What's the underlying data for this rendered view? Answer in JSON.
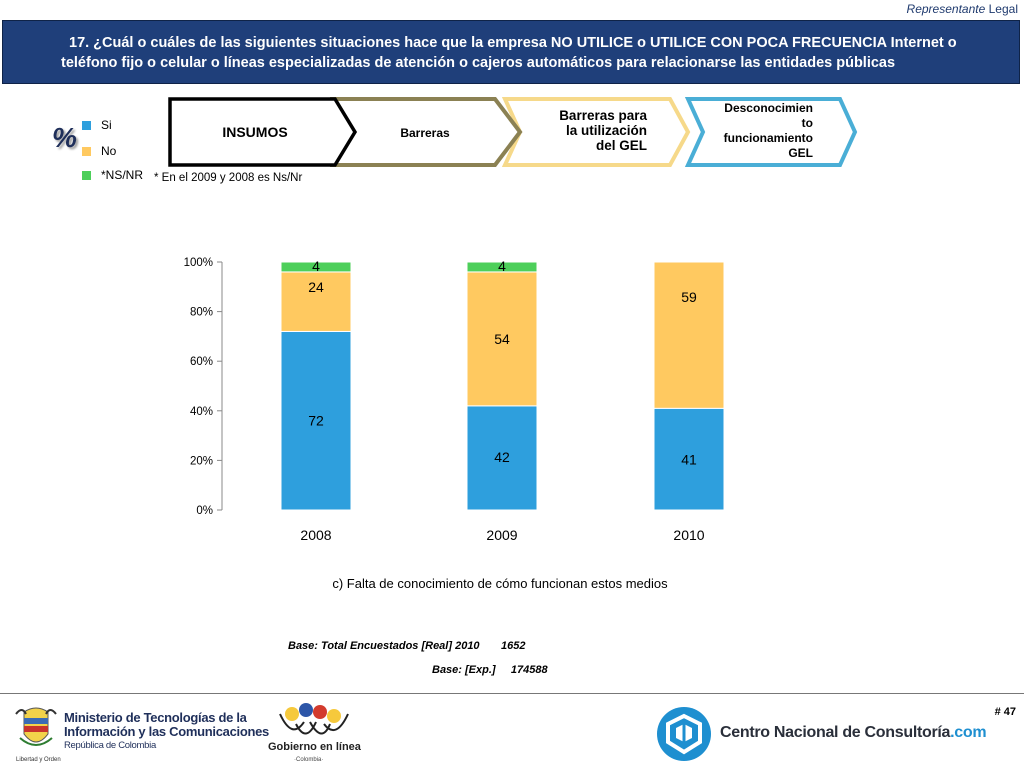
{
  "top_right": {
    "italic": "Representante",
    "plain": "Legal"
  },
  "header": {
    "question": "17. ¿Cuál o cuáles de las siguientes situaciones hace que la empresa NO UTILICE o UTILICE CON POCA FRECUENCIA Internet o teléfono fijo o celular o líneas especializadas de atención o cajeros automáticos para relacionarse las entidades públicas",
    "bg_color": "#1f3f7a"
  },
  "percent_symbol": "%",
  "legend": [
    {
      "label": "Si",
      "color": "#2e9fdd"
    },
    {
      "label": "No",
      "color": "#ffc960"
    },
    {
      "label": "*NS/NR",
      "color": "#4dcf5a"
    }
  ],
  "footnote": "* En el 2009 y 2008 es Ns/Nr",
  "chevrons": [
    {
      "label": "INSUMOS",
      "border_color": "#000000"
    },
    {
      "label": "Barreras",
      "border_color": "#8b8153"
    },
    {
      "label": "Barreras para la utilización del GEL",
      "border_color": "#f6d98a"
    },
    {
      "label": "Desconocimiento funcionamiento GEL",
      "border_color": "#4aaed6"
    }
  ],
  "chevron_label_lines": {
    "c2": [
      "Barreras para",
      "la utilización",
      "del GEL"
    ],
    "c3": [
      "Desconocimien",
      "to",
      "funcionamiento",
      "GEL"
    ]
  },
  "chart_data": {
    "type": "bar",
    "stacked": true,
    "categories": [
      "2008",
      "2009",
      "2010"
    ],
    "series": [
      {
        "name": "Si",
        "values": [
          72,
          42,
          41
        ],
        "color": "#2e9fdd"
      },
      {
        "name": "No",
        "values": [
          24,
          54,
          59
        ],
        "color": "#ffc960"
      },
      {
        "name": "*NS/NR",
        "values": [
          4,
          4,
          0
        ],
        "color": "#4dcf5a"
      }
    ],
    "data_labels": [
      [
        "72",
        "42",
        "41"
      ],
      [
        "24",
        "54",
        "59"
      ],
      [
        "4",
        "4",
        ""
      ]
    ],
    "y_ticks": [
      "0%",
      "20%",
      "40%",
      "60%",
      "80%",
      "100%"
    ],
    "ylim": [
      0,
      100
    ],
    "grid": false,
    "legend_position": "top-left"
  },
  "caption": "c) Falta de conocimiento de cómo funcionan estos medios",
  "base_total": {
    "label": "Base: Total Encuestados [Real] 2010",
    "value": "1652"
  },
  "base_exp": {
    "label": "Base: [Exp.]",
    "value": "174588"
  },
  "page_number": "# 47",
  "footer": {
    "mintic_line1": "Ministerio de Tecnologías de la",
    "mintic_line2": "Información y las Comunicaciones",
    "mintic_line3": "República de Colombia",
    "motto": "Libertad y Orden",
    "gel_name": "Gobierno en línea",
    "gel_sub": "·Colombia·",
    "cnc_name": "Centro Nacional de Consultoría",
    "cnc_suffix": ".com"
  }
}
